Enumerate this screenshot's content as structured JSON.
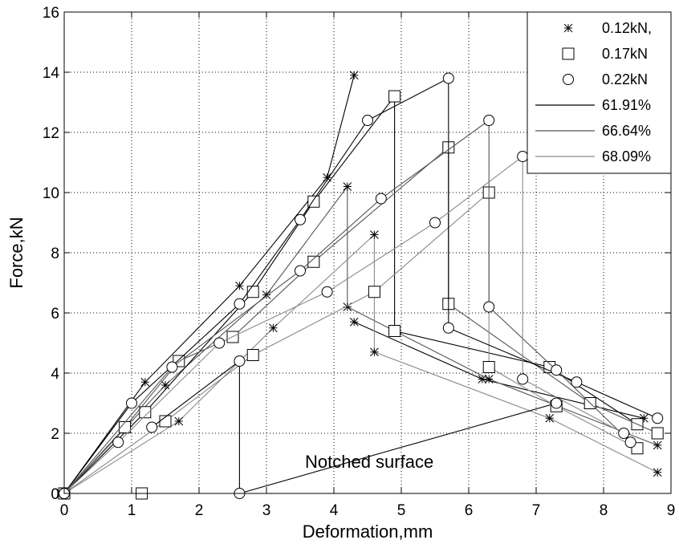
{
  "chart_data": {
    "type": "line",
    "xlabel": "Deformation,mm",
    "ylabel": "Force,kN",
    "annotation": "Notched surface",
    "xlim": [
      0,
      9
    ],
    "ylim": [
      0,
      16
    ],
    "xticks": [
      0,
      1,
      2,
      3,
      4,
      5,
      6,
      7,
      8,
      9
    ],
    "yticks": [
      0,
      2,
      4,
      6,
      8,
      10,
      12,
      14,
      16
    ],
    "grid": true,
    "legend_position": "top-right",
    "legend": [
      {
        "label": "0.12kN,",
        "marker": "star"
      },
      {
        "label": "0.17kN",
        "marker": "square"
      },
      {
        "label": "0.22kN",
        "marker": "circle"
      },
      {
        "label": "61.91%",
        "line_color": "#000000"
      },
      {
        "label": "66.64%",
        "line_color": "#555555"
      },
      {
        "label": "68.09%",
        "line_color": "#8a8a8a"
      }
    ],
    "series": [
      {
        "marker": "star",
        "color": "#000000",
        "points": [
          [
            0,
            0
          ],
          [
            1.2,
            3.7
          ],
          [
            2.6,
            6.9
          ],
          [
            3.9,
            10.5
          ],
          [
            4.3,
            13.9
          ]
        ]
      },
      {
        "marker": "star",
        "color": "#000000",
        "points": [
          [
            4.3,
            5.7
          ],
          [
            6.2,
            3.8
          ],
          [
            8.6,
            2.5
          ]
        ]
      },
      {
        "marker": "star",
        "color": "#555555",
        "points": [
          [
            0,
            0
          ],
          [
            1.5,
            3.6
          ],
          [
            3.0,
            6.6
          ],
          [
            4.2,
            10.2
          ],
          [
            4.2,
            6.2
          ],
          [
            6.3,
            3.8
          ],
          [
            8.8,
            1.6
          ]
        ]
      },
      {
        "marker": "star",
        "color": "#8a8a8a",
        "points": [
          [
            0,
            0
          ],
          [
            1.7,
            2.4
          ],
          [
            3.1,
            5.5
          ],
          [
            4.6,
            8.6
          ],
          [
            4.6,
            4.7
          ],
          [
            7.2,
            2.5
          ],
          [
            8.8,
            0.7
          ]
        ]
      },
      {
        "marker": "square",
        "color": "#000000",
        "points": [
          [
            0,
            0
          ],
          [
            1.2,
            2.7
          ],
          [
            2.8,
            6.7
          ],
          [
            3.7,
            9.7
          ],
          [
            4.9,
            13.2
          ],
          [
            4.9,
            5.4
          ],
          [
            7.2,
            4.2
          ],
          [
            8.5,
            2.3
          ]
        ]
      },
      {
        "marker": "square",
        "color": "#555555",
        "points": [
          [
            0,
            0
          ],
          [
            0.9,
            2.2
          ],
          [
            1.7,
            4.4
          ],
          [
            2.5,
            5.2
          ],
          [
            3.7,
            7.7
          ],
          [
            5.7,
            11.5
          ],
          [
            5.7,
            6.3
          ],
          [
            7.8,
            3.0
          ],
          [
            8.8,
            2.0
          ]
        ]
      },
      {
        "marker": "square",
        "color": "#8a8a8a",
        "points": [
          [
            0,
            0
          ],
          [
            1.5,
            2.4
          ],
          [
            2.8,
            4.6
          ],
          [
            4.6,
            6.7
          ],
          [
            6.3,
            10.0
          ],
          [
            6.3,
            4.2
          ],
          [
            7.3,
            2.9
          ],
          [
            8.5,
            1.5
          ]
        ]
      },
      {
        "marker": "square",
        "color": "#000000",
        "points": [
          [
            1.15,
            0
          ]
        ]
      },
      {
        "marker": "circle",
        "color": "#000000",
        "points": [
          [
            0,
            0
          ],
          [
            1.0,
            3.0
          ],
          [
            2.6,
            6.3
          ],
          [
            3.5,
            9.1
          ],
          [
            4.5,
            12.4
          ],
          [
            5.7,
            13.8
          ],
          [
            5.7,
            5.5
          ],
          [
            7.6,
            3.7
          ],
          [
            8.8,
            2.5
          ]
        ]
      },
      {
        "marker": "circle",
        "color": "#555555",
        "points": [
          [
            0,
            0
          ],
          [
            1.6,
            4.2
          ],
          [
            3.5,
            7.4
          ],
          [
            4.7,
            9.8
          ],
          [
            6.3,
            12.4
          ],
          [
            6.3,
            6.2
          ],
          [
            7.3,
            4.1
          ],
          [
            8.4,
            1.7
          ]
        ]
      },
      {
        "marker": "circle",
        "color": "#8a8a8a",
        "points": [
          [
            0,
            0
          ],
          [
            0.8,
            1.7
          ],
          [
            2.3,
            5.0
          ],
          [
            3.9,
            6.7
          ],
          [
            5.5,
            9.0
          ],
          [
            6.8,
            11.2
          ],
          [
            6.8,
            3.8
          ],
          [
            8.3,
            2.0
          ]
        ]
      },
      {
        "marker": "circle",
        "color": "#000000",
        "points": [
          [
            1.3,
            2.2
          ],
          [
            2.6,
            4.4
          ],
          [
            2.6,
            0
          ],
          [
            7.3,
            3.0
          ]
        ]
      }
    ]
  }
}
